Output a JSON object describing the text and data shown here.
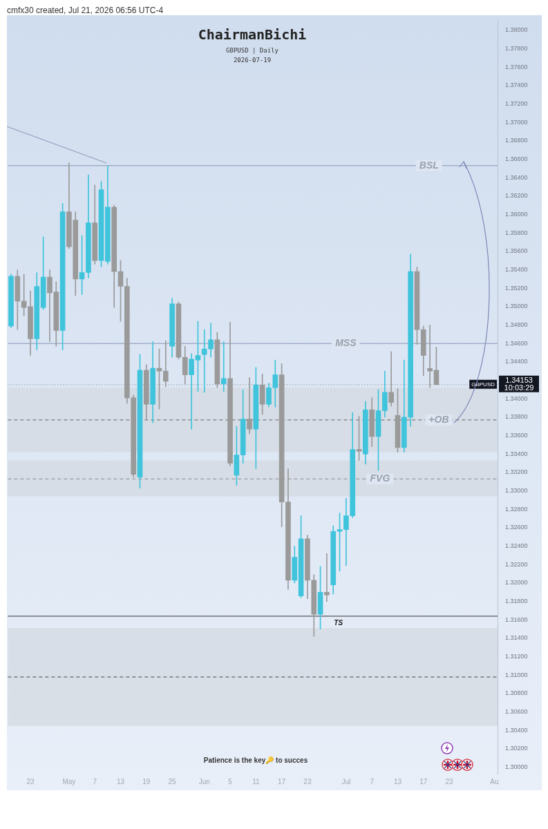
{
  "chart_data": {
    "type": "candlestick",
    "title": "ChairmanBichi",
    "subtitle": "GBPUSD | Daily",
    "annotations": [
      "cmfx30 created, Jul 21, 2026 06:56 UTC-4",
      "2026-07-19",
      "GBPUSD",
      "10:03:29",
      "Patience is the key🔑 to succes"
    ],
    "categories": [
      null,
      null,
      null,
      "23",
      null,
      null,
      null,
      null,
      null,
      "May",
      null,
      null,
      null,
      "7",
      null,
      null,
      null,
      "13",
      null,
      null,
      null,
      "19",
      null,
      null,
      null,
      "25",
      null,
      null,
      null,
      null,
      "Jun",
      null,
      null,
      null,
      "5",
      null,
      null,
      null,
      "11",
      null,
      null,
      null,
      "17",
      null,
      null,
      null,
      "23",
      null,
      null,
      null,
      null,
      null,
      "Jul",
      null,
      null,
      null,
      "7",
      null,
      null,
      null,
      "13",
      null,
      null,
      null,
      "17",
      null,
      null,
      null,
      "23",
      null,
      null,
      null,
      null,
      null,
      null,
      "Au"
    ],
    "ohlc": [
      [
        1.3479,
        1.3535,
        1.3477,
        1.3533
      ],
      [
        1.3533,
        1.354,
        1.3475,
        1.3506
      ],
      [
        1.3506,
        1.3535,
        1.349,
        1.3499
      ],
      [
        1.35,
        1.3517,
        1.3447,
        1.3465
      ],
      [
        1.3465,
        1.3537,
        1.3453,
        1.3522
      ],
      [
        1.3499,
        1.3576,
        1.3497,
        1.3532
      ],
      [
        1.3532,
        1.354,
        1.3462,
        1.3515
      ],
      [
        1.3516,
        1.3527,
        1.3457,
        1.3474
      ],
      [
        1.3474,
        1.3612,
        1.3453,
        1.3603
      ],
      [
        1.3603,
        1.3656,
        1.3563,
        1.3565
      ],
      [
        1.3594,
        1.3603,
        1.3512,
        1.353
      ],
      [
        1.353,
        1.3577,
        1.3513,
        1.3537
      ],
      [
        1.3537,
        1.3643,
        1.3531,
        1.3591
      ],
      [
        1.3591,
        1.3632,
        1.3546,
        1.355
      ],
      [
        1.355,
        1.3636,
        1.3543,
        1.3627
      ],
      [
        1.3549,
        1.3653,
        1.3546,
        1.3608
      ],
      [
        1.3608,
        1.361,
        1.3499,
        1.3538
      ],
      [
        1.3538,
        1.355,
        1.3484,
        1.3522
      ],
      [
        1.3522,
        1.3531,
        1.3395,
        1.3401
      ],
      [
        1.3401,
        1.3404,
        1.3315,
        1.3318
      ],
      [
        1.3315,
        1.3448,
        1.3303,
        1.3431
      ],
      [
        1.3431,
        1.3437,
        1.3378,
        1.3394
      ],
      [
        1.3394,
        1.3462,
        1.3374,
        1.3433
      ],
      [
        1.3433,
        1.3454,
        1.3389,
        1.343
      ],
      [
        1.343,
        1.3463,
        1.3413,
        1.3419
      ],
      [
        1.3457,
        1.3509,
        1.3445,
        1.3503
      ],
      [
        1.3503,
        1.3505,
        1.3443,
        1.3445
      ],
      [
        1.3445,
        1.3457,
        1.3416,
        1.3426
      ],
      [
        1.3426,
        1.3449,
        1.3367,
        1.3443
      ],
      [
        1.3442,
        1.3484,
        1.3408,
        1.3447
      ],
      [
        1.3448,
        1.3475,
        1.3407,
        1.3454
      ],
      [
        1.3454,
        1.3482,
        1.3445,
        1.3464
      ],
      [
        1.3464,
        1.3472,
        1.3412,
        1.3416
      ],
      [
        1.3416,
        1.3462,
        1.3408,
        1.3422
      ],
      [
        1.3422,
        1.3483,
        1.3327,
        1.333
      ],
      [
        1.3317,
        1.337,
        1.3306,
        1.3339
      ],
      [
        1.3339,
        1.341,
        1.333,
        1.3378
      ],
      [
        1.3378,
        1.3423,
        1.3362,
        1.3367
      ],
      [
        1.3367,
        1.3434,
        1.3324,
        1.3415
      ],
      [
        1.3415,
        1.3427,
        1.3383,
        1.3394
      ],
      [
        1.3394,
        1.3417,
        1.3391,
        1.3412
      ],
      [
        1.3412,
        1.3442,
        1.3391,
        1.3426
      ],
      [
        1.3426,
        1.3438,
        1.3261,
        1.3288
      ],
      [
        1.3288,
        1.3324,
        1.3193,
        1.3203
      ],
      [
        1.3203,
        1.324,
        1.32,
        1.3228
      ],
      [
        1.3186,
        1.3273,
        1.3184,
        1.3248
      ],
      [
        1.3248,
        1.3252,
        1.3183,
        1.3203
      ],
      [
        1.3203,
        1.3209,
        1.3142,
        1.3166
      ],
      [
        1.3166,
        1.3218,
        1.315,
        1.319
      ],
      [
        1.319,
        1.3232,
        1.318,
        1.3187
      ],
      [
        1.3198,
        1.3262,
        1.3188,
        1.3256
      ],
      [
        1.3256,
        1.3276,
        1.3213,
        1.3258
      ],
      [
        1.3258,
        1.3292,
        1.3219,
        1.3273
      ],
      [
        1.3273,
        1.3385,
        1.3271,
        1.3345
      ],
      [
        1.3345,
        1.3381,
        1.3333,
        1.3343
      ],
      [
        1.334,
        1.3397,
        1.3329,
        1.3388
      ],
      [
        1.3388,
        1.3401,
        1.3348,
        1.3359
      ],
      [
        1.3359,
        1.341,
        1.3322,
        1.3387
      ],
      [
        1.3387,
        1.343,
        1.338,
        1.3407
      ],
      [
        1.3407,
        1.3451,
        1.3392,
        1.3396
      ],
      [
        1.3382,
        1.3411,
        1.3342,
        1.3347
      ],
      [
        1.3347,
        1.3442,
        1.3342,
        1.338
      ],
      [
        1.338,
        1.3557,
        1.337,
        1.3538
      ],
      [
        1.3538,
        1.3543,
        1.3459,
        1.3475
      ],
      [
        1.3475,
        1.3479,
        1.3425,
        1.3447
      ],
      [
        1.3433,
        1.348,
        1.3412,
        1.343
      ],
      [
        1.3431,
        1.3456,
        1.3415,
        1.34153
      ],
      null,
      null,
      null,
      null,
      null,
      null,
      null,
      null,
      null
    ],
    "colors": [
      "#3fc4dc",
      "#9a9a9a",
      "#9a9a9a",
      "#9a9a9a",
      "#3fc4dc",
      "#3fc4dc",
      "#9a9a9a",
      "#9a9a9a",
      "#3fc4dc",
      "#9a9a9a",
      "#9a9a9a",
      "#3fc4dc",
      "#3fc4dc",
      "#9a9a9a",
      "#3fc4dc",
      "#3fc4dc",
      "#9a9a9a",
      "#9a9a9a",
      "#9a9a9a",
      "#9a9a9a",
      "#3fc4dc",
      "#9a9a9a",
      "#3fc4dc",
      "#9a9a9a",
      "#9a9a9a",
      "#3fc4dc",
      "#9a9a9a",
      "#9a9a9a",
      "#3fc4dc",
      "#3fc4dc",
      "#3fc4dc",
      "#3fc4dc",
      "#9a9a9a",
      "#3fc4dc",
      "#9a9a9a",
      "#3fc4dc",
      "#3fc4dc",
      "#9a9a9a",
      "#3fc4dc",
      "#9a9a9a",
      "#3fc4dc",
      "#3fc4dc",
      "#9a9a9a",
      "#9a9a9a",
      "#3fc4dc",
      "#3fc4dc",
      "#9a9a9a",
      "#9a9a9a",
      "#3fc4dc",
      "#9a9a9a",
      "#3fc4dc",
      "#3fc4dc",
      "#3fc4dc",
      "#3fc4dc",
      "#9a9a9a",
      "#3fc4dc",
      "#9a9a9a",
      "#3fc4dc",
      "#3fc4dc",
      "#9a9a9a",
      "#9a9a9a",
      "#3fc4dc",
      "#3fc4dc",
      "#9a9a9a",
      "#9a9a9a",
      "#9a9a9a",
      "#9a9a9a",
      null,
      null,
      null,
      null,
      null,
      null,
      null,
      null,
      null
    ],
    "ylim": [
      1.2993,
      1.381
    ],
    "yticks": [
      {
        "value": 1.3,
        "label": "1.30000"
      },
      {
        "value": 1.302,
        "label": "1.30200"
      },
      {
        "value": 1.304,
        "label": "1.30400"
      },
      {
        "value": 1.306,
        "label": "1.30600"
      },
      {
        "value": 1.308,
        "label": "1.30800"
      },
      {
        "value": 1.31,
        "label": "1.31000"
      },
      {
        "value": 1.312,
        "label": "1.31200"
      },
      {
        "value": 1.314,
        "label": "1.31400"
      },
      {
        "value": 1.316,
        "label": "1.31600"
      },
      {
        "value": 1.318,
        "label": "1.31800"
      },
      {
        "value": 1.32,
        "label": "1.32000"
      },
      {
        "value": 1.322,
        "label": "1.32200"
      },
      {
        "value": 1.324,
        "label": "1.32400"
      },
      {
        "value": 1.326,
        "label": "1.32600"
      },
      {
        "value": 1.328,
        "label": "1.32800"
      },
      {
        "value": 1.33,
        "label": "1.33000"
      },
      {
        "value": 1.332,
        "label": "1.33200"
      },
      {
        "value": 1.334,
        "label": "1.33400"
      },
      {
        "value": 1.336,
        "label": "1.33600"
      },
      {
        "value": 1.338,
        "label": "1.33800"
      },
      {
        "value": 1.34,
        "label": "1.34000"
      },
      {
        "value": 1.344,
        "label": "1.34400"
      },
      {
        "value": 1.346,
        "label": "1.34600"
      },
      {
        "value": 1.348,
        "label": "1.34800"
      },
      {
        "value": 1.35,
        "label": "1.35000"
      },
      {
        "value": 1.352,
        "label": "1.35200"
      },
      {
        "value": 1.354,
        "label": "1.35400"
      },
      {
        "value": 1.356,
        "label": "1.35600"
      },
      {
        "value": 1.358,
        "label": "1.35800"
      },
      {
        "value": 1.36,
        "label": "1.36000"
      },
      {
        "value": 1.362,
        "label": "1.36200"
      },
      {
        "value": 1.364,
        "label": "1.36400"
      },
      {
        "value": 1.366,
        "label": "1.36600"
      },
      {
        "value": 1.368,
        "label": "1.36800"
      },
      {
        "value": 1.37,
        "label": "1.37000"
      },
      {
        "value": 1.372,
        "label": "1.37200"
      },
      {
        "value": 1.374,
        "label": "1.37400"
      },
      {
        "value": 1.376,
        "label": "1.37600"
      },
      {
        "value": 1.378,
        "label": "1.37800"
      },
      {
        "value": 1.38,
        "label": "1.38000"
      }
    ],
    "grid": false,
    "ref_lines": [
      {
        "axis": "y",
        "value": 1.3653,
        "label": "BSL",
        "color": "#8595b5",
        "line_style": "solid"
      },
      {
        "axis": "y",
        "value": 1.346,
        "label": "MSS",
        "color": "#8595b5",
        "line_style": "solid"
      },
      {
        "axis": "y",
        "value": 1.3164,
        "label": "TS",
        "color": "#333333",
        "line_style": "solid"
      },
      {
        "axis": "y",
        "value": 1.3313,
        "label": "FVG",
        "color": "#888888",
        "line_style": "dashed"
      },
      {
        "axis": "y",
        "value": 1.3377,
        "label": "+OB",
        "color": "#666666",
        "line_style": "dashed"
      },
      {
        "axis": "y",
        "value": 1.3098,
        "color": "#444444",
        "line_style": "dashed"
      },
      {
        "axis": "y",
        "value": 1.34153,
        "label": "1.34153",
        "color": "#777777",
        "line_style": "dotted"
      }
    ],
    "bands": [
      {
        "axis": "y",
        "from": 1.3294,
        "to": 1.3333,
        "color": "#d3d8e0"
      },
      {
        "axis": "y",
        "from": 1.3342,
        "to": 1.3412,
        "color": "#d3d8e0"
      },
      {
        "axis": "y",
        "from": 1.3045,
        "to": 1.3151,
        "color": "#d3d8e0"
      }
    ]
  }
}
